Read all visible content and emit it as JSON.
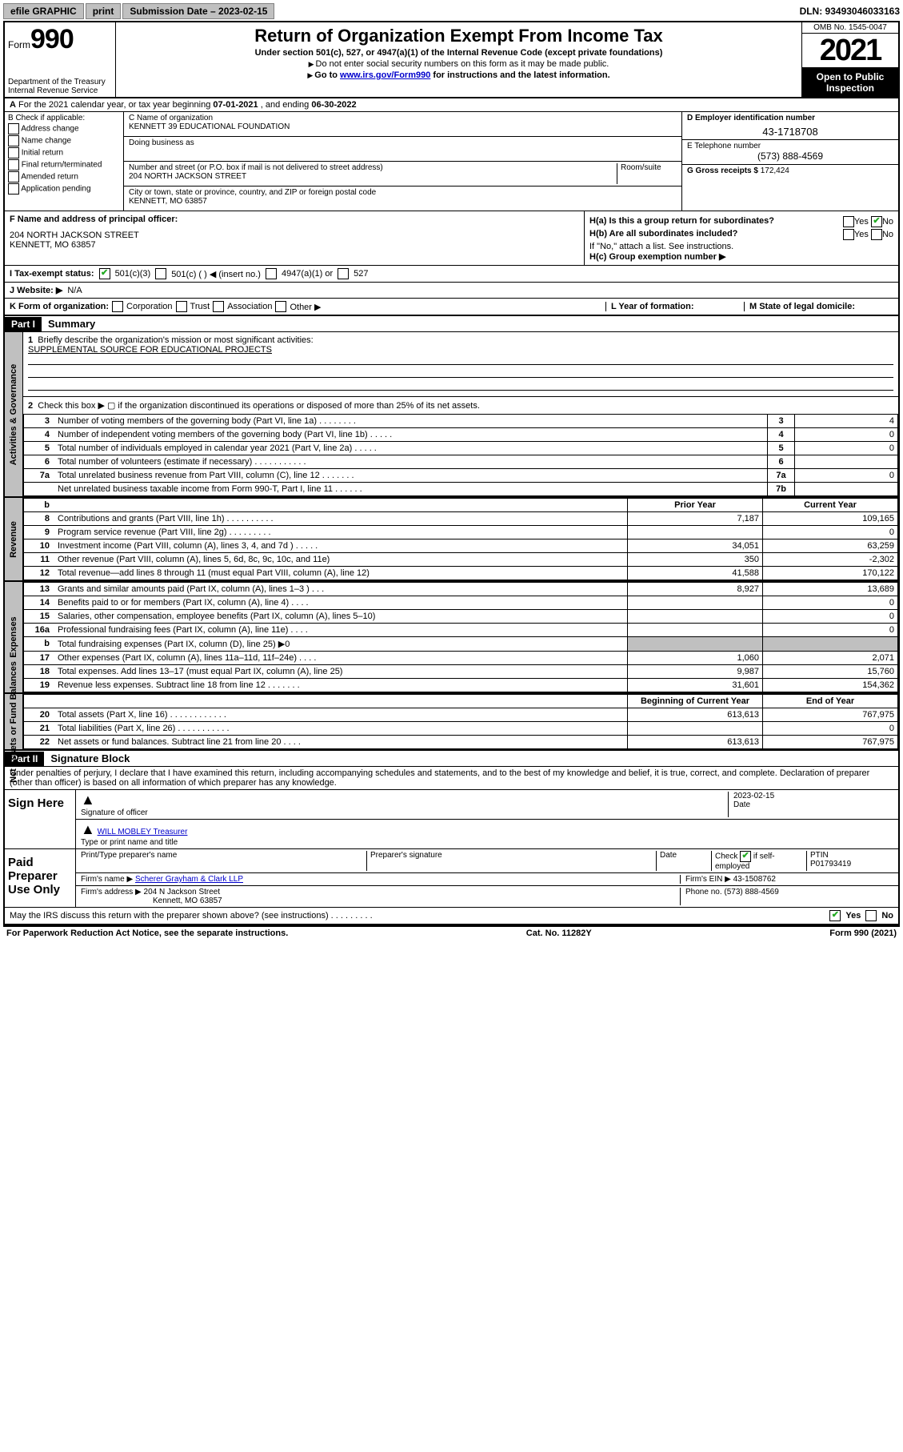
{
  "colors": {
    "link": "#0000cc",
    "check": "#22aa22",
    "gray": "#c0c0c0",
    "black": "#000000",
    "white": "#ffffff"
  },
  "topbar": {
    "efile": "efile GRAPHIC",
    "print": "print",
    "submission": "Submission Date – 2023-02-15",
    "dln": "DLN: 93493046033163"
  },
  "hdr": {
    "form_prefix": "Form",
    "form_no": "990",
    "title": "Return of Organization Exempt From Income Tax",
    "subtitle": "Under section 501(c), 527, or 4947(a)(1) of the Internal Revenue Code (except private foundations)",
    "note1": "Do not enter social security numbers on this form as it may be made public.",
    "note2_pre": "Go to ",
    "note2_link": "www.irs.gov/Form990",
    "note2_post": " for instructions and the latest information.",
    "dept": "Department of the Treasury",
    "irs": "Internal Revenue Service",
    "omb": "OMB No. 1545-0047",
    "year": "2021",
    "open": "Open to Public Inspection"
  },
  "row_a": {
    "label": "A",
    "text_pre": "For the 2021 calendar year, or tax year beginning ",
    "begin": "07-01-2021",
    "mid": " , and ending ",
    "end": "06-30-2022"
  },
  "b": {
    "label": "B Check if applicable:",
    "opts": [
      "Address change",
      "Name change",
      "Initial return",
      "Final return/terminated",
      "Amended return",
      "Application pending"
    ]
  },
  "c": {
    "name_lbl": "C Name of organization",
    "name": "KENNETT 39 EDUCATIONAL FOUNDATION",
    "dba_lbl": "Doing business as",
    "dba": "",
    "addr_lbl": "Number and street (or P.O. box if mail is not delivered to street address)",
    "room_lbl": "Room/suite",
    "addr": "204 NORTH JACKSON STREET",
    "city_lbl": "City or town, state or province, country, and ZIP or foreign postal code",
    "city": "KENNETT, MO  63857"
  },
  "d": {
    "lbl": "D Employer identification number",
    "val": "43-1718708"
  },
  "e": {
    "lbl": "E Telephone number",
    "val": "(573) 888-4569"
  },
  "g": {
    "lbl": "G Gross receipts $",
    "val": "172,424"
  },
  "f": {
    "lbl": "F Name and address of principal officer:",
    "l1": "",
    "l2": "204 NORTH JACKSON STREET",
    "l3": "KENNETT, MO  63857"
  },
  "h": {
    "a_lbl": "H(a)  Is this a group return for subordinates?",
    "a_yes": "Yes",
    "a_no": "No",
    "b_lbl": "H(b)  Are all subordinates included?",
    "b_yes": "Yes",
    "b_no": "No",
    "note": "If \"No,\" attach a list. See instructions.",
    "c_lbl": "H(c)  Group exemption number ▶"
  },
  "i": {
    "lbl": "I    Tax-exempt status:",
    "o1": "501(c)(3)",
    "o2": "501(c) (   ) ◀ (insert no.)",
    "o3": "4947(a)(1) or",
    "o4": "527"
  },
  "j": {
    "lbl": "J   Website: ▶",
    "val": "N/A"
  },
  "k": {
    "lbl": "K Form of organization:",
    "opts": [
      "Corporation",
      "Trust",
      "Association",
      "Other ▶"
    ]
  },
  "l": {
    "lbl": "L Year of formation:",
    "val": ""
  },
  "m": {
    "lbl": "M State of legal domicile:",
    "val": ""
  },
  "part1": {
    "hdr": "Part I",
    "title": "Summary",
    "l1_lbl": "1",
    "l1_txt": "Briefly describe the organization's mission or most significant activities:",
    "mission": "SUPPLEMENTAL SOURCE FOR EDUCATIONAL PROJECTS",
    "l2_lbl": "2",
    "l2_txt": "Check this box ▶ ▢  if the organization discontinued its operations or disposed of more than 25% of its net assets."
  },
  "gov_rows": [
    {
      "n": "3",
      "t": "Number of voting members of the governing body (Part VI, line 1a)   .   .   .   .   .   .   .   .",
      "lbl": "3",
      "v": "4"
    },
    {
      "n": "4",
      "t": "Number of independent voting members of the governing body (Part VI, line 1b)   .   .   .   .   .",
      "lbl": "4",
      "v": "0"
    },
    {
      "n": "5",
      "t": "Total number of individuals employed in calendar year 2021 (Part V, line 2a)   .   .   .   .   .",
      "lbl": "5",
      "v": "0"
    },
    {
      "n": "6",
      "t": "Total number of volunteers (estimate if necessary)   .   .   .   .   .   .   .   .   .   .   .",
      "lbl": "6",
      "v": ""
    },
    {
      "n": "7a",
      "t": "Total unrelated business revenue from Part VIII, column (C), line 12   .   .   .   .   .   .   .",
      "lbl": "7a",
      "v": "0"
    },
    {
      "n": "",
      "t": "Net unrelated business taxable income from Form 990-T, Part I, line 11   .   .   .   .   .   .",
      "lbl": "7b",
      "v": ""
    }
  ],
  "rev_hdr": {
    "b": "b",
    "pyr": "Prior Year",
    "cyr": "Current Year"
  },
  "rev_rows": [
    {
      "n": "8",
      "t": "Contributions and grants (Part VIII, line 1h)   .   .   .   .   .   .   .   .   .   .",
      "p": "7,187",
      "c": "109,165"
    },
    {
      "n": "9",
      "t": "Program service revenue (Part VIII, line 2g)   .   .   .   .   .   .   .   .   .",
      "p": "",
      "c": "0"
    },
    {
      "n": "10",
      "t": "Investment income (Part VIII, column (A), lines 3, 4, and 7d )   .   .   .   .   .",
      "p": "34,051",
      "c": "63,259"
    },
    {
      "n": "11",
      "t": "Other revenue (Part VIII, column (A), lines 5, 6d, 8c, 9c, 10c, and 11e)",
      "p": "350",
      "c": "-2,302"
    },
    {
      "n": "12",
      "t": "Total revenue—add lines 8 through 11 (must equal Part VIII, column (A), line 12)",
      "p": "41,588",
      "c": "170,122"
    }
  ],
  "exp_rows": [
    {
      "n": "13",
      "t": "Grants and similar amounts paid (Part IX, column (A), lines 1–3 )   .   .   .",
      "p": "8,927",
      "c": "13,689"
    },
    {
      "n": "14",
      "t": "Benefits paid to or for members (Part IX, column (A), line 4)   .   .   .   .",
      "p": "",
      "c": "0"
    },
    {
      "n": "15",
      "t": "Salaries, other compensation, employee benefits (Part IX, column (A), lines 5–10)",
      "p": "",
      "c": "0"
    },
    {
      "n": "16a",
      "t": "Professional fundraising fees (Part IX, column (A), line 11e)   .   .   .   .",
      "p": "",
      "c": "0"
    },
    {
      "n": "b",
      "t": "Total fundraising expenses (Part IX, column (D), line 25) ▶0",
      "p": "GRAY",
      "c": "GRAY"
    },
    {
      "n": "17",
      "t": "Other expenses (Part IX, column (A), lines 11a–11d, 11f–24e)   .   .   .   .",
      "p": "1,060",
      "c": "2,071"
    },
    {
      "n": "18",
      "t": "Total expenses. Add lines 13–17 (must equal Part IX, column (A), line 25)",
      "p": "9,987",
      "c": "15,760"
    },
    {
      "n": "19",
      "t": "Revenue less expenses. Subtract line 18 from line 12   .   .   .   .   .   .   .",
      "p": "31,601",
      "c": "154,362"
    }
  ],
  "net_hdr": {
    "b": "Beginning of Current Year",
    "e": "End of Year"
  },
  "net_rows": [
    {
      "n": "20",
      "t": "Total assets (Part X, line 16)   .   .   .   .   .   .   .   .   .   .   .   .",
      "p": "613,613",
      "c": "767,975"
    },
    {
      "n": "21",
      "t": "Total liabilities (Part X, line 26)   .   .   .   .   .   .   .   .   .   .   .",
      "p": "",
      "c": "0"
    },
    {
      "n": "22",
      "t": "Net assets or fund balances. Subtract line 21 from line 20   .   .   .   .",
      "p": "613,613",
      "c": "767,975"
    }
  ],
  "side_tabs": {
    "gov": "Activities & Governance",
    "rev": "Revenue",
    "exp": "Expenses",
    "net": "Net Assets or Fund Balances"
  },
  "part2": {
    "hdr": "Part II",
    "title": "Signature Block",
    "decl": "Under penalties of perjury, I declare that I have examined this return, including accompanying schedules and statements, and to the best of my knowledge and belief, it is true, correct, and complete. Declaration of preparer (other than officer) is based on all information of which preparer has any knowledge."
  },
  "sign": {
    "lbl": "Sign Here",
    "sig_lbl": "Signature of officer",
    "date_lbl": "Date",
    "date": "2023-02-15",
    "name": "WILL MOBLEY Treasurer",
    "name_lbl": "Type or print name and title"
  },
  "prep": {
    "lbl": "Paid Preparer Use Only",
    "h1": "Print/Type preparer's name",
    "h2": "Preparer's signature",
    "h3": "Date",
    "h4_pre": "Check",
    "h4_post": "if self-employed",
    "ptin_lbl": "PTIN",
    "ptin": "P01793419",
    "firm_lbl": "Firm's name    ▶",
    "firm": "Scherer Grayham & Clark LLP",
    "ein_lbl": "Firm's EIN ▶",
    "ein": "43-1508762",
    "addr_lbl": "Firm's address ▶",
    "addr1": "204 N Jackson Street",
    "addr2": "Kennett, MO  63857",
    "ph_lbl": "Phone no.",
    "ph": "(573) 888-4569"
  },
  "discuss": {
    "txt": "May the IRS discuss this return with the preparer shown above? (see instructions)   .   .   .   .   .   .   .   .   .",
    "yes": "Yes",
    "no": "No"
  },
  "footer": {
    "l": "For Paperwork Reduction Act Notice, see the separate instructions.",
    "m": "Cat. No. 11282Y",
    "r": "Form 990 (2021)"
  }
}
